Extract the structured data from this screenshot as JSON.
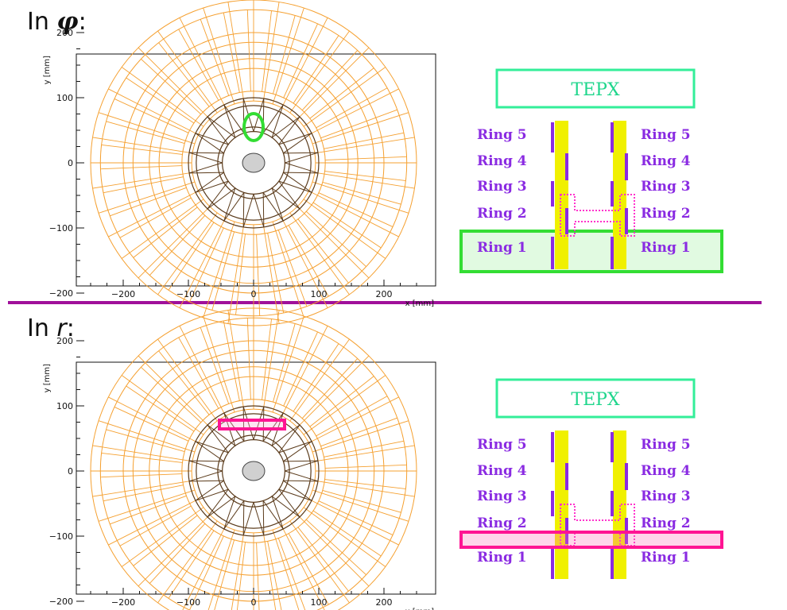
{
  "sections": [
    {
      "heading_prefix": "In ",
      "heading_symbol": "φ",
      "heading_suffix": ":",
      "highlight_color": "#33dd33",
      "highlight_target": "Ring 1"
    },
    {
      "heading_prefix": "In ",
      "heading_symbol": "r",
      "heading_suffix": ":",
      "highlight_color": "#ff1493",
      "highlight_target": "Ring 2"
    }
  ],
  "plot": {
    "x_axis_label": "x [mm]",
    "y_axis_label": "y [mm]",
    "x_ticks": [
      "−200",
      "−100",
      "0",
      "100",
      "200"
    ],
    "y_ticks": [
      "200",
      "100",
      "0",
      "−100",
      "−200"
    ],
    "outer_color": "#f5a030",
    "inner_color": "#5a3a1a"
  },
  "schematic": {
    "title": "TEPX",
    "rings_left": [
      "Ring 5",
      "Ring 4",
      "Ring 3",
      "Ring 2",
      "Ring 1"
    ],
    "rings_right": [
      "Ring 5",
      "Ring 4",
      "Ring 3",
      "Ring 2",
      "Ring 1"
    ],
    "disk_color": "#f0f000",
    "module_color": "#8a2be2",
    "box_color": "#33ee99"
  },
  "divider_color": "#a0109a"
}
